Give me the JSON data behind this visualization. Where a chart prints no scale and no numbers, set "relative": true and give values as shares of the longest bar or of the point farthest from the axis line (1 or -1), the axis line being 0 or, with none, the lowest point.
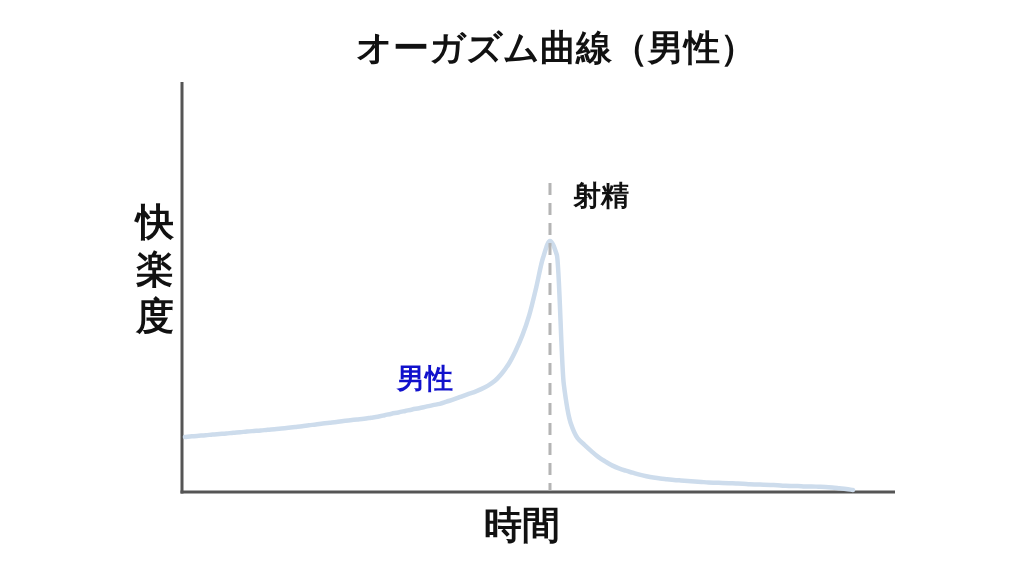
{
  "chart_data": {
    "type": "line",
    "title": "オーガズム曲線（男性）",
    "xlabel": "時間",
    "ylabel": "快楽度",
    "relative": true,
    "marker": "none",
    "line_style": "solid",
    "categories": [
      null,
      null,
      null,
      null,
      null,
      null,
      null,
      null,
      null,
      null,
      null,
      null,
      null,
      null,
      null,
      null,
      null,
      null,
      null,
      null,
      null,
      null,
      null,
      null,
      null,
      null,
      null,
      null,
      null,
      null,
      null,
      null,
      null,
      null,
      null,
      null,
      null,
      null,
      null,
      null,
      null,
      null,
      null,
      null,
      null,
      null,
      null,
      null,
      null,
      null,
      null,
      null,
      null,
      null,
      null,
      null,
      null,
      null,
      null,
      null,
      null,
      null,
      null,
      null,
      null,
      null,
      null,
      null,
      null,
      null,
      null,
      null,
      null,
      null,
      null,
      null,
      null,
      null,
      null,
      null,
      null,
      null,
      null,
      null,
      null,
      null,
      null,
      null,
      null,
      null,
      null,
      null,
      null,
      null,
      null,
      null,
      null,
      null
    ],
    "series": [
      {
        "name": "男性",
        "color": "#cddcec",
        "values": [
          0.219,
          0.222,
          0.224,
          0.226,
          0.229,
          0.231,
          0.233,
          0.236,
          0.238,
          0.241,
          0.243,
          0.245,
          0.248,
          0.25,
          0.253,
          0.256,
          0.259,
          0.262,
          0.266,
          0.269,
          0.273,
          0.276,
          0.279,
          0.283,
          0.286,
          0.289,
          0.292,
          0.296,
          0.3,
          0.306,
          0.312,
          0.317,
          0.323,
          0.329,
          0.334,
          0.34,
          0.346,
          0.351,
          0.36,
          0.369,
          0.379,
          0.389,
          0.398,
          0.41,
          0.424,
          0.443,
          0.472,
          0.51,
          0.562,
          0.625,
          0.706,
          0.815,
          0.934,
          1.0,
          0.944,
          0.43,
          0.275,
          0.215,
          0.188,
          0.163,
          0.14,
          0.122,
          0.106,
          0.094,
          0.085,
          0.077,
          0.069,
          0.063,
          0.058,
          0.054,
          0.051,
          0.048,
          0.046,
          0.044,
          0.042,
          0.04,
          0.038,
          0.037,
          0.036,
          0.035,
          0.034,
          0.033,
          0.031,
          0.03,
          0.029,
          0.028,
          0.027,
          0.025,
          0.024,
          0.024,
          0.022,
          0.022,
          0.021,
          0.02,
          0.018,
          0.015,
          0.012,
          0.008
        ]
      }
    ],
    "annotations": [
      "射精"
    ]
  }
}
